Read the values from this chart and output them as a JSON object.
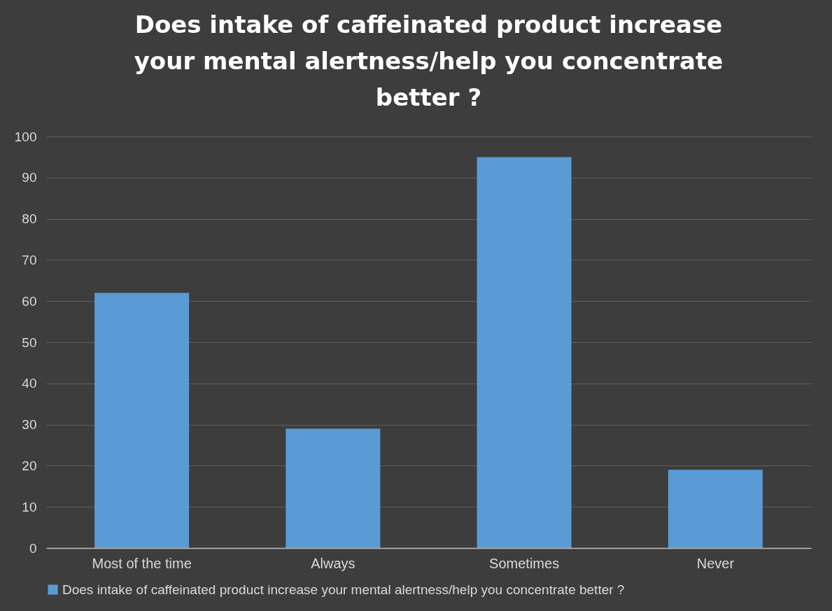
{
  "chart_data": {
    "type": "bar",
    "title": "Does intake of caffeinated product increase your mental alertness/help you concentrate better ?",
    "categories": [
      "Most of the time",
      "Always",
      "Sometimes",
      "Never"
    ],
    "series": [
      {
        "name": "Does intake of caffeinated product increase your mental alertness/help you concentrate better ?",
        "color": "#5b9bd5",
        "values": [
          62,
          29,
          95,
          19
        ]
      }
    ],
    "ylim": [
      0,
      100
    ],
    "yticks": [
      0,
      10,
      20,
      30,
      40,
      50,
      60,
      70,
      80,
      90,
      100
    ],
    "grid": "y",
    "legend": "bottom"
  }
}
